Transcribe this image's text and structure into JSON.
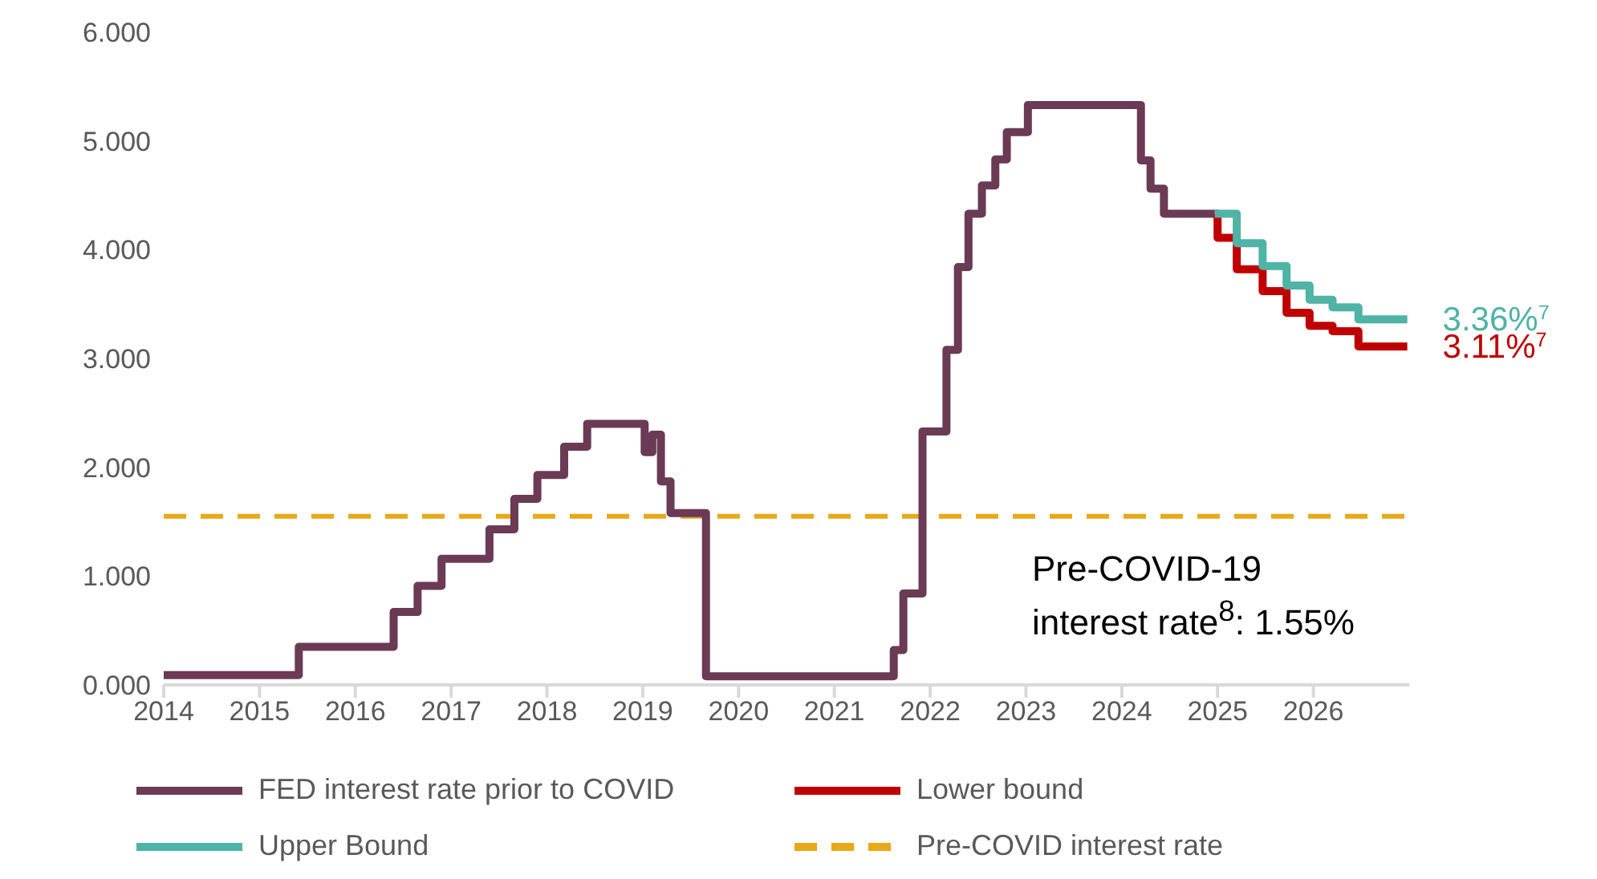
{
  "chart_data": {
    "type": "step",
    "xlim": [
      2014,
      2027
    ],
    "xticks": [
      2014,
      2015,
      2016,
      2017,
      2018,
      2019,
      2020,
      2021,
      2022,
      2023,
      2024,
      2025,
      2026
    ],
    "ylim": [
      0,
      6
    ],
    "yticks": [
      {
        "value": 0,
        "label": "0.000"
      },
      {
        "value": 1,
        "label": "1.000"
      },
      {
        "value": 2,
        "label": "2.000"
      },
      {
        "value": 3,
        "label": "3.000"
      },
      {
        "value": 4,
        "label": "4.000"
      },
      {
        "value": 5,
        "label": "5.000"
      },
      {
        "value": 6,
        "label": "6.000"
      }
    ],
    "legend": "bottom",
    "line_style": "solid",
    "marker": "none",
    "series": [
      {
        "name": "FED interest rate prior to COVID",
        "color": "#6b3a55",
        "x": [
          2014,
          2015.41,
          2016.4,
          2016.65,
          2016.9,
          2017.4,
          2017.66,
          2017.9,
          2018.18,
          2018.42,
          2019.02,
          2019.1,
          2019.19,
          2019.29,
          2019.66,
          2021.62,
          2021.72,
          2021.92,
          2022.17,
          2022.29,
          2022.4,
          2022.54,
          2022.68,
          2022.8,
          2023.02,
          2024.2,
          2024.3,
          2024.44,
          2024.97
        ],
        "values": [
          0.09,
          0.35,
          0.67,
          0.91,
          1.16,
          1.43,
          1.71,
          1.93,
          2.19,
          2.4,
          2.14,
          2.3,
          1.87,
          1.58,
          0.08,
          0.32,
          0.84,
          2.33,
          3.08,
          3.84,
          4.33,
          4.59,
          4.83,
          5.08,
          5.33,
          4.82,
          4.56,
          4.33,
          4.33
        ]
      },
      {
        "name": "Lower bound",
        "color": "#c00000",
        "x": [
          2024.97,
          2025.0,
          2025.2,
          2025.47,
          2025.72,
          2025.96,
          2026.2,
          2026.47,
          2026.98
        ],
        "values": [
          4.33,
          4.11,
          3.82,
          3.62,
          3.42,
          3.3,
          3.25,
          3.11,
          3.11
        ],
        "value_labels": [
          null,
          null,
          null,
          null,
          null,
          null,
          null,
          null,
          "3.11%$^{7}$"
        ]
      },
      {
        "name": "Upper Bound",
        "color": "#4fb3a5",
        "x": [
          2024.97,
          2025.2,
          2025.47,
          2025.72,
          2025.96,
          2026.2,
          2026.47,
          2026.98
        ],
        "values": [
          4.33,
          4.06,
          3.85,
          3.67,
          3.54,
          3.47,
          3.36,
          3.36
        ],
        "value_labels": [
          null,
          null,
          null,
          null,
          null,
          null,
          null,
          "3.36%$^{7}$"
        ]
      }
    ],
    "ref_lines": [
      {
        "axis": "y",
        "value": 1.55,
        "label": "Pre-COVID interest rate",
        "color": "#e8a817",
        "line_style": "dashed"
      }
    ],
    "annotations": [
      "Pre-COVID-19\ninterest rate$^{8}$: 1.55%"
    ]
  }
}
